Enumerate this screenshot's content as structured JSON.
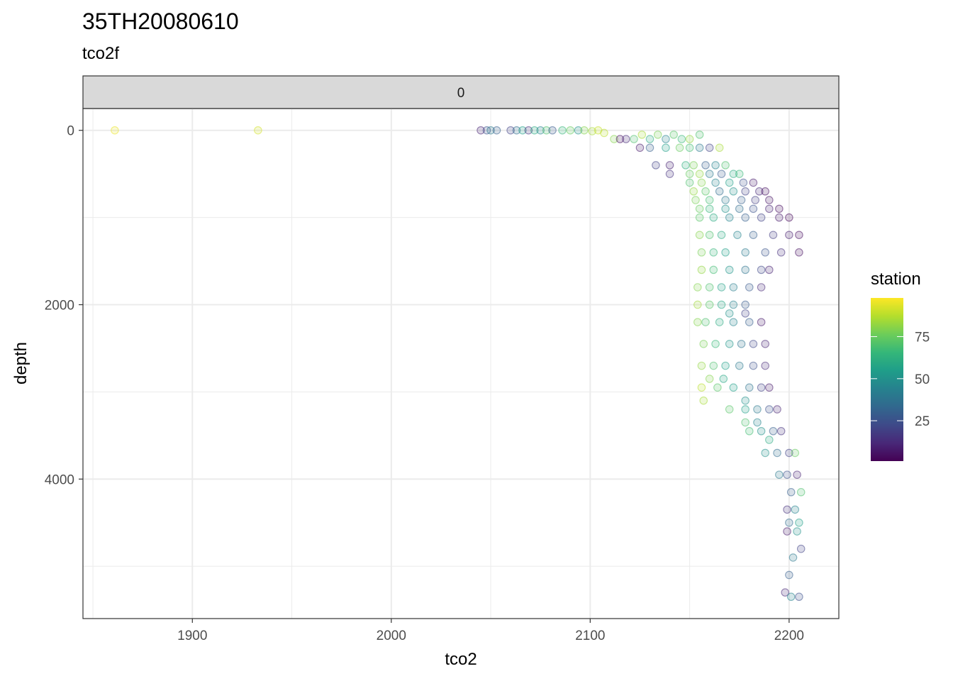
{
  "chart_data": {
    "type": "scatter",
    "title": "35TH20080610",
    "subtitle": "tco2f",
    "facet_label": "0",
    "xlabel": "tco2",
    "ylabel": "depth",
    "xlim": [
      1845,
      2225
    ],
    "ylim": [
      -250,
      5600
    ],
    "y_reversed": true,
    "x_ticks": [
      1900,
      2000,
      2100,
      2200
    ],
    "y_ticks": [
      0,
      2000,
      4000
    ],
    "grid": true,
    "point_alpha": 0.2,
    "legend": {
      "title": "station",
      "placement": "right",
      "type": "colorbar",
      "range": [
        1,
        98
      ],
      "ticks": [
        25,
        50,
        75
      ],
      "palette": [
        "#440154",
        "#482878",
        "#3E4A89",
        "#31688E",
        "#26828E",
        "#1F9E89",
        "#35B779",
        "#6DCD59",
        "#B4DE2C",
        "#FDE725"
      ]
    },
    "series": [
      {
        "name": "station",
        "points": [
          {
            "x": 1861,
            "y": 0,
            "station": 95
          },
          {
            "x": 1933,
            "y": 0,
            "station": 92
          },
          {
            "x": 2045,
            "y": 0,
            "station": 10
          },
          {
            "x": 2048,
            "y": 0,
            "station": 25
          },
          {
            "x": 2050,
            "y": 0,
            "station": 40
          },
          {
            "x": 2053,
            "y": 0,
            "station": 30
          },
          {
            "x": 2060,
            "y": 0,
            "station": 20
          },
          {
            "x": 2063,
            "y": 0,
            "station": 35
          },
          {
            "x": 2066,
            "y": 0,
            "station": 55
          },
          {
            "x": 2069,
            "y": 0,
            "station": 15
          },
          {
            "x": 2072,
            "y": 0,
            "station": 60
          },
          {
            "x": 2075,
            "y": 0,
            "station": 45
          },
          {
            "x": 2078,
            "y": 0,
            "station": 70
          },
          {
            "x": 2081,
            "y": 0,
            "station": 28
          },
          {
            "x": 2086,
            "y": 0,
            "station": 65
          },
          {
            "x": 2090,
            "y": 0,
            "station": 75
          },
          {
            "x": 2094,
            "y": 0,
            "station": 50
          },
          {
            "x": 2097,
            "y": 0,
            "station": 80
          },
          {
            "x": 2101,
            "y": 10,
            "station": 85
          },
          {
            "x": 2104,
            "y": 0,
            "station": 90
          },
          {
            "x": 2107,
            "y": 30,
            "station": 88
          },
          {
            "x": 2112,
            "y": 100,
            "station": 80
          },
          {
            "x": 2115,
            "y": 100,
            "station": 5
          },
          {
            "x": 2118,
            "y": 100,
            "station": 12
          },
          {
            "x": 2122,
            "y": 100,
            "station": 70
          },
          {
            "x": 2126,
            "y": 50,
            "station": 85
          },
          {
            "x": 2130,
            "y": 100,
            "station": 60
          },
          {
            "x": 2134,
            "y": 50,
            "station": 78
          },
          {
            "x": 2138,
            "y": 100,
            "station": 45
          },
          {
            "x": 2142,
            "y": 50,
            "station": 72
          },
          {
            "x": 2146,
            "y": 100,
            "station": 66
          },
          {
            "x": 2150,
            "y": 100,
            "station": 82
          },
          {
            "x": 2155,
            "y": 50,
            "station": 70
          },
          {
            "x": 2125,
            "y": 200,
            "station": 8
          },
          {
            "x": 2130,
            "y": 200,
            "station": 30
          },
          {
            "x": 2138,
            "y": 200,
            "station": 55
          },
          {
            "x": 2145,
            "y": 200,
            "station": 75
          },
          {
            "x": 2150,
            "y": 200,
            "station": 68
          },
          {
            "x": 2155,
            "y": 200,
            "station": 40
          },
          {
            "x": 2160,
            "y": 200,
            "station": 20
          },
          {
            "x": 2165,
            "y": 200,
            "station": 85
          },
          {
            "x": 2133,
            "y": 400,
            "station": 20
          },
          {
            "x": 2140,
            "y": 400,
            "station": 10
          },
          {
            "x": 2148,
            "y": 400,
            "station": 62
          },
          {
            "x": 2152,
            "y": 400,
            "station": 78
          },
          {
            "x": 2158,
            "y": 400,
            "station": 30
          },
          {
            "x": 2163,
            "y": 400,
            "station": 45
          },
          {
            "x": 2168,
            "y": 400,
            "station": 70
          },
          {
            "x": 2140,
            "y": 500,
            "station": 15
          },
          {
            "x": 2150,
            "y": 500,
            "station": 75
          },
          {
            "x": 2155,
            "y": 500,
            "station": 82
          },
          {
            "x": 2160,
            "y": 500,
            "station": 40
          },
          {
            "x": 2166,
            "y": 500,
            "station": 28
          },
          {
            "x": 2172,
            "y": 500,
            "station": 60
          },
          {
            "x": 2175,
            "y": 500,
            "station": 66
          },
          {
            "x": 2150,
            "y": 600,
            "station": 70
          },
          {
            "x": 2156,
            "y": 600,
            "station": 80
          },
          {
            "x": 2163,
            "y": 600,
            "station": 45
          },
          {
            "x": 2170,
            "y": 600,
            "station": 55
          },
          {
            "x": 2177,
            "y": 600,
            "station": 25
          },
          {
            "x": 2182,
            "y": 600,
            "station": 8
          },
          {
            "x": 2152,
            "y": 700,
            "station": 82
          },
          {
            "x": 2158,
            "y": 700,
            "station": 72
          },
          {
            "x": 2165,
            "y": 700,
            "station": 35
          },
          {
            "x": 2172,
            "y": 700,
            "station": 50
          },
          {
            "x": 2178,
            "y": 700,
            "station": 20
          },
          {
            "x": 2185,
            "y": 700,
            "station": 12
          },
          {
            "x": 2188,
            "y": 700,
            "station": 5
          },
          {
            "x": 2153,
            "y": 800,
            "station": 78
          },
          {
            "x": 2160,
            "y": 800,
            "station": 68
          },
          {
            "x": 2168,
            "y": 800,
            "station": 40
          },
          {
            "x": 2176,
            "y": 800,
            "station": 30
          },
          {
            "x": 2183,
            "y": 800,
            "station": 18
          },
          {
            "x": 2190,
            "y": 800,
            "station": 6
          },
          {
            "x": 2155,
            "y": 900,
            "station": 75
          },
          {
            "x": 2160,
            "y": 900,
            "station": 65
          },
          {
            "x": 2168,
            "y": 900,
            "station": 50
          },
          {
            "x": 2175,
            "y": 900,
            "station": 35
          },
          {
            "x": 2182,
            "y": 900,
            "station": 25
          },
          {
            "x": 2190,
            "y": 900,
            "station": 10
          },
          {
            "x": 2195,
            "y": 900,
            "station": 4
          },
          {
            "x": 2155,
            "y": 1000,
            "station": 72
          },
          {
            "x": 2162,
            "y": 1000,
            "station": 60
          },
          {
            "x": 2170,
            "y": 1000,
            "station": 45
          },
          {
            "x": 2178,
            "y": 1000,
            "station": 30
          },
          {
            "x": 2186,
            "y": 1000,
            "station": 20
          },
          {
            "x": 2195,
            "y": 1000,
            "station": 8
          },
          {
            "x": 2200,
            "y": 1000,
            "station": 3
          },
          {
            "x": 2155,
            "y": 1200,
            "station": 80
          },
          {
            "x": 2160,
            "y": 1200,
            "station": 70
          },
          {
            "x": 2166,
            "y": 1200,
            "station": 60
          },
          {
            "x": 2174,
            "y": 1200,
            "station": 45
          },
          {
            "x": 2182,
            "y": 1200,
            "station": 30
          },
          {
            "x": 2192,
            "y": 1200,
            "station": 18
          },
          {
            "x": 2200,
            "y": 1200,
            "station": 9
          },
          {
            "x": 2205,
            "y": 1200,
            "station": 4
          },
          {
            "x": 2156,
            "y": 1400,
            "station": 78
          },
          {
            "x": 2162,
            "y": 1400,
            "station": 65
          },
          {
            "x": 2168,
            "y": 1400,
            "station": 55
          },
          {
            "x": 2178,
            "y": 1400,
            "station": 40
          },
          {
            "x": 2188,
            "y": 1400,
            "station": 26
          },
          {
            "x": 2196,
            "y": 1400,
            "station": 14
          },
          {
            "x": 2205,
            "y": 1400,
            "station": 5
          },
          {
            "x": 2156,
            "y": 1600,
            "station": 82
          },
          {
            "x": 2162,
            "y": 1600,
            "station": 68
          },
          {
            "x": 2170,
            "y": 1600,
            "station": 52
          },
          {
            "x": 2178,
            "y": 1600,
            "station": 38
          },
          {
            "x": 2186,
            "y": 1600,
            "station": 22
          },
          {
            "x": 2190,
            "y": 1600,
            "station": 10
          },
          {
            "x": 2154,
            "y": 1800,
            "station": 80
          },
          {
            "x": 2160,
            "y": 1800,
            "station": 70
          },
          {
            "x": 2166,
            "y": 1800,
            "station": 56
          },
          {
            "x": 2172,
            "y": 1800,
            "station": 42
          },
          {
            "x": 2180,
            "y": 1800,
            "station": 28
          },
          {
            "x": 2186,
            "y": 1800,
            "station": 12
          },
          {
            "x": 2154,
            "y": 2000,
            "station": 84
          },
          {
            "x": 2160,
            "y": 2000,
            "station": 72
          },
          {
            "x": 2166,
            "y": 2000,
            "station": 58
          },
          {
            "x": 2172,
            "y": 2000,
            "station": 44
          },
          {
            "x": 2178,
            "y": 2000,
            "station": 28
          },
          {
            "x": 2170,
            "y": 2100,
            "station": 50
          },
          {
            "x": 2178,
            "y": 2100,
            "station": 20
          },
          {
            "x": 2154,
            "y": 2200,
            "station": 80
          },
          {
            "x": 2158,
            "y": 2200,
            "station": 70
          },
          {
            "x": 2165,
            "y": 2200,
            "station": 60
          },
          {
            "x": 2172,
            "y": 2200,
            "station": 45
          },
          {
            "x": 2180,
            "y": 2200,
            "station": 30
          },
          {
            "x": 2186,
            "y": 2200,
            "station": 8
          },
          {
            "x": 2157,
            "y": 2450,
            "station": 78
          },
          {
            "x": 2163,
            "y": 2450,
            "station": 66
          },
          {
            "x": 2170,
            "y": 2450,
            "station": 52
          },
          {
            "x": 2176,
            "y": 2450,
            "station": 38
          },
          {
            "x": 2182,
            "y": 2450,
            "station": 22
          },
          {
            "x": 2188,
            "y": 2450,
            "station": 10
          },
          {
            "x": 2156,
            "y": 2700,
            "station": 82
          },
          {
            "x": 2162,
            "y": 2700,
            "station": 70
          },
          {
            "x": 2168,
            "y": 2700,
            "station": 55
          },
          {
            "x": 2175,
            "y": 2700,
            "station": 40
          },
          {
            "x": 2182,
            "y": 2700,
            "station": 25
          },
          {
            "x": 2188,
            "y": 2700,
            "station": 12
          },
          {
            "x": 2160,
            "y": 2850,
            "station": 80
          },
          {
            "x": 2167,
            "y": 2850,
            "station": 58
          },
          {
            "x": 2156,
            "y": 2950,
            "station": 88
          },
          {
            "x": 2164,
            "y": 2950,
            "station": 72
          },
          {
            "x": 2172,
            "y": 2950,
            "station": 55
          },
          {
            "x": 2180,
            "y": 2950,
            "station": 38
          },
          {
            "x": 2186,
            "y": 2950,
            "station": 20
          },
          {
            "x": 2190,
            "y": 2950,
            "station": 8
          },
          {
            "x": 2157,
            "y": 3100,
            "station": 85
          },
          {
            "x": 2178,
            "y": 3100,
            "station": 50
          },
          {
            "x": 2170,
            "y": 3200,
            "station": 72
          },
          {
            "x": 2178,
            "y": 3200,
            "station": 55
          },
          {
            "x": 2184,
            "y": 3200,
            "station": 40
          },
          {
            "x": 2190,
            "y": 3200,
            "station": 25
          },
          {
            "x": 2194,
            "y": 3200,
            "station": 10
          },
          {
            "x": 2178,
            "y": 3350,
            "station": 70
          },
          {
            "x": 2184,
            "y": 3350,
            "station": 45
          },
          {
            "x": 2180,
            "y": 3450,
            "station": 68
          },
          {
            "x": 2186,
            "y": 3450,
            "station": 50
          },
          {
            "x": 2192,
            "y": 3450,
            "station": 30
          },
          {
            "x": 2196,
            "y": 3450,
            "station": 15
          },
          {
            "x": 2190,
            "y": 3550,
            "station": 60
          },
          {
            "x": 2188,
            "y": 3700,
            "station": 50
          },
          {
            "x": 2194,
            "y": 3700,
            "station": 35
          },
          {
            "x": 2200,
            "y": 3700,
            "station": 20
          },
          {
            "x": 2203,
            "y": 3700,
            "station": 75
          },
          {
            "x": 2195,
            "y": 3950,
            "station": 40
          },
          {
            "x": 2199,
            "y": 3950,
            "station": 25
          },
          {
            "x": 2204,
            "y": 3950,
            "station": 10
          },
          {
            "x": 2201,
            "y": 4150,
            "station": 30
          },
          {
            "x": 2206,
            "y": 4150,
            "station": 70
          },
          {
            "x": 2199,
            "y": 4350,
            "station": 15
          },
          {
            "x": 2203,
            "y": 4350,
            "station": 45
          },
          {
            "x": 2200,
            "y": 4500,
            "station": 35
          },
          {
            "x": 2205,
            "y": 4500,
            "station": 55
          },
          {
            "x": 2199,
            "y": 4600,
            "station": 8
          },
          {
            "x": 2204,
            "y": 4600,
            "station": 50
          },
          {
            "x": 2206,
            "y": 4800,
            "station": 20
          },
          {
            "x": 2202,
            "y": 4900,
            "station": 40
          },
          {
            "x": 2200,
            "y": 5100,
            "station": 30
          },
          {
            "x": 2198,
            "y": 5300,
            "station": 12
          },
          {
            "x": 2201,
            "y": 5350,
            "station": 45
          },
          {
            "x": 2205,
            "y": 5350,
            "station": 25
          }
        ]
      }
    ]
  }
}
